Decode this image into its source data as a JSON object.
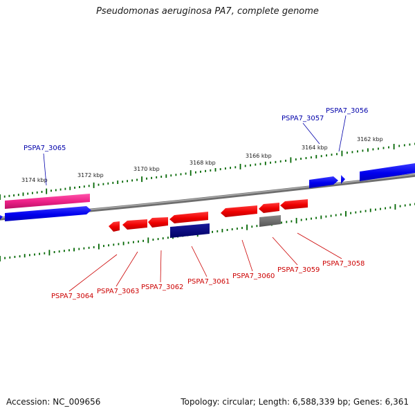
{
  "title": "Pseudomonas aeruginosa PA7, complete genome",
  "accession": "Accession: NC_009656",
  "summary": "Topology: circular; Length: 6,588,339 bp; Genes: 6,361",
  "scale_labels": [
    "3174 kbp",
    "3172 kbp",
    "3170 kbp",
    "3168 kbp",
    "3166 kbp",
    "3164 kbp",
    "3162 kbp"
  ],
  "colors": {
    "forward_gene": "#0000ee",
    "reverse_gene": "#ee0000",
    "forward_label": "#0000aa",
    "reverse_label": "#cc0000",
    "pink_feature": "#ee2288",
    "navy_feature": "#000077",
    "gray_feature": "#666666",
    "backbone": "#7a7a7a",
    "ticks": "#006600"
  },
  "forward_labels": [
    "PSPA7_3065",
    "PSPA7_3057",
    "PSPA7_3056"
  ],
  "reverse_labels": [
    "PSPA7_3064",
    "PSPA7_3063",
    "PSPA7_3062",
    "PSPA7_3061",
    "PSPA7_3060",
    "PSPA7_3059",
    "PSPA7_3058"
  ]
}
